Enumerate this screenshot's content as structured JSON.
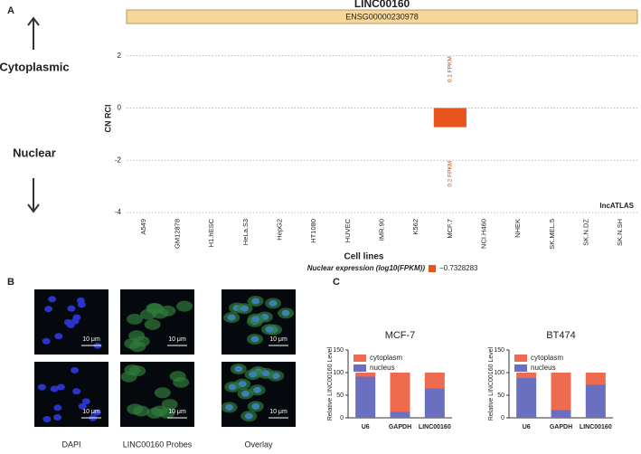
{
  "panel_labels": [
    "A",
    "B",
    "C"
  ],
  "side_labels": {
    "top": "Cytoplasmic",
    "bottom": "Nuclear"
  },
  "micrographs": {
    "columns": [
      "DAPI",
      "LINC00160 Probes",
      "Overlay"
    ],
    "scale_bar": "10 μm"
  },
  "chart_data": [
    {
      "type": "bar",
      "title": "LINC00160",
      "subtitle": "ENSG00000230978",
      "y_label": "CN RCI",
      "x_label": "Cell lines",
      "watermark": "lncATLAS",
      "categories": [
        "A549",
        "GM12878",
        "H1.hESC",
        "HeLa.S3",
        "HepG2",
        "HT1080",
        "HUVEC",
        "IMR.90",
        "K562",
        "MCF.7",
        "NCI.H460",
        "NHEK",
        "SK.MEL.5",
        "SK.N.DZ",
        "SK.N.SH"
      ],
      "values": [
        null,
        null,
        null,
        null,
        null,
        null,
        null,
        null,
        null,
        -0.7328283,
        null,
        null,
        null,
        null,
        null
      ],
      "color": "#e8541e",
      "ylim": [
        -4,
        3.2
      ],
      "yticks": [
        -4,
        -2,
        0,
        2
      ],
      "grid": true,
      "annotations": [
        {
          "text": "0.1 FPKM",
          "category": "MCF.7",
          "y": 2
        },
        {
          "text": "0.2 FPKM",
          "category": "MCF.7",
          "y": -2
        }
      ],
      "legend": {
        "title": "Nuclear expression (log10(FPKM))",
        "label": "−0.7328283"
      }
    },
    {
      "type": "stacked-bar",
      "title": "MCF-7",
      "y_label": "Relative LINC00160 Level",
      "categories": [
        "U6",
        "GAPDH",
        "LINC00160"
      ],
      "series": [
        {
          "name": "nucleus",
          "color": "#6b6fc0",
          "values": [
            91,
            13,
            65
          ]
        },
        {
          "name": "cytoplasm",
          "color": "#ee6b4f",
          "values": [
            9,
            87,
            35
          ]
        }
      ],
      "ylim": [
        0,
        150
      ],
      "yticks": [
        0,
        50,
        100,
        150
      ]
    },
    {
      "type": "stacked-bar",
      "title": "BT474",
      "y_label": "Relative LINC00160 Level",
      "categories": [
        "U6",
        "GAPDH",
        "LINC00160"
      ],
      "series": [
        {
          "name": "nucleus",
          "color": "#6b6fc0",
          "values": [
            88,
            17,
            73
          ]
        },
        {
          "name": "cytoplasm",
          "color": "#ee6b4f",
          "values": [
            12,
            83,
            27
          ]
        }
      ],
      "ylim": [
        0,
        150
      ],
      "yticks": [
        0,
        50,
        100,
        150
      ]
    }
  ]
}
